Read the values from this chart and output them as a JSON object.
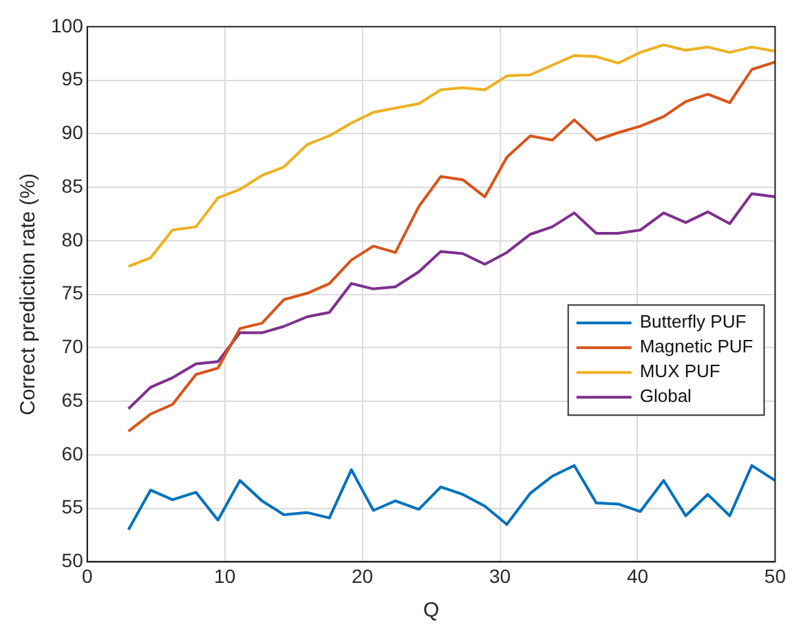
{
  "chart_data": {
    "type": "line",
    "xlabel": "Q",
    "ylabel": "Correct prediction rate (%)",
    "x": [
      3,
      4.6,
      6.2,
      7.9,
      9.5,
      11.1,
      12.7,
      14.3,
      16.0,
      17.6,
      19.2,
      20.8,
      22.4,
      24.1,
      25.7,
      27.3,
      28.9,
      30.5,
      32.2,
      33.8,
      35.4,
      37.0,
      38.6,
      40.2,
      41.9,
      43.5,
      45.1,
      46.7,
      48.3,
      50
    ],
    "series": [
      {
        "name": "Butterfly PUF",
        "color": "#0072bd",
        "values": [
          53.0,
          56.7,
          55.8,
          56.5,
          53.9,
          57.6,
          55.7,
          54.4,
          54.6,
          54.1,
          58.6,
          54.8,
          55.7,
          54.9,
          57.0,
          56.3,
          55.2,
          53.5,
          56.4,
          58.0,
          59.0,
          55.5,
          55.4,
          54.7,
          57.6,
          54.3,
          56.3,
          54.3,
          59.0,
          57.6
        ]
      },
      {
        "name": "Magnetic PUF",
        "color": "#d95319",
        "values": [
          62.2,
          63.8,
          64.7,
          67.5,
          68.1,
          71.8,
          72.3,
          74.5,
          75.1,
          76.0,
          78.2,
          79.5,
          78.9,
          83.2,
          86.0,
          85.7,
          84.1,
          87.8,
          89.8,
          89.4,
          91.3,
          89.4,
          90.1,
          90.7,
          91.6,
          93.0,
          93.7,
          92.9,
          96.0,
          96.7
        ]
      },
      {
        "name": "MUX PUF",
        "color": "#edb120",
        "values": [
          77.6,
          78.4,
          81.0,
          81.3,
          84.0,
          84.8,
          86.1,
          86.9,
          89.0,
          89.8,
          91.0,
          92.0,
          92.4,
          92.8,
          94.1,
          94.3,
          94.1,
          95.4,
          95.5,
          96.4,
          97.3,
          97.2,
          96.6,
          97.6,
          98.3,
          97.8,
          98.1,
          97.6,
          98.1,
          97.7
        ]
      },
      {
        "name": "Global",
        "color": "#7e2f8e",
        "values": [
          64.3,
          66.3,
          67.2,
          68.5,
          68.7,
          71.4,
          71.4,
          72.0,
          72.9,
          73.3,
          76.0,
          75.5,
          75.7,
          77.1,
          79.0,
          78.8,
          77.8,
          78.9,
          80.6,
          81.3,
          82.6,
          80.7,
          80.7,
          81.0,
          82.6,
          81.7,
          82.7,
          81.6,
          84.4,
          84.1
        ]
      }
    ],
    "xlim": [
      0,
      50
    ],
    "xticks": [
      0,
      10,
      20,
      30,
      40,
      50
    ],
    "ylim": [
      50,
      100
    ],
    "yticks": [
      50,
      55,
      60,
      65,
      70,
      75,
      80,
      85,
      90,
      95,
      100
    ],
    "grid": true,
    "legend": "right",
    "marker": "none",
    "line_style": "solid"
  }
}
